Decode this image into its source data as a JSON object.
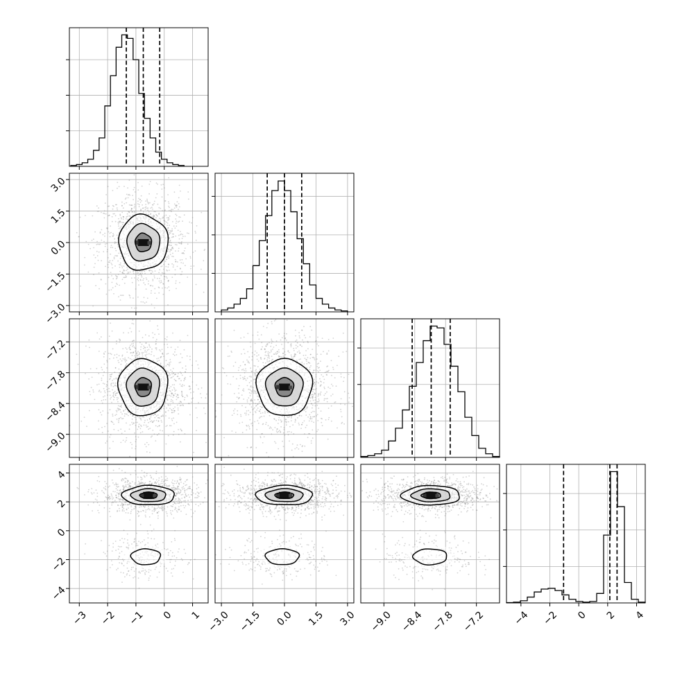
{
  "chart_data": {
    "type": "corner",
    "description_free": true,
    "parameters": [
      {
        "range": [
          -3.35,
          1.55
        ],
        "ticks": [
          {
            "value": -3,
            "label": "−3"
          },
          {
            "value": -2,
            "label": "−2"
          },
          {
            "value": -1,
            "label": "−1"
          },
          {
            "value": 0,
            "label": "0"
          },
          {
            "value": 1,
            "label": "1"
          }
        ],
        "quantiles": [
          -1.34,
          -0.74,
          -0.16
        ],
        "hist": {
          "start": -3.3,
          "width": 0.2,
          "counts": [
            0.5,
            1,
            2,
            4,
            9,
            16,
            34,
            51,
            67,
            74,
            72,
            60,
            41,
            27,
            16,
            8,
            4,
            2,
            1,
            0.5
          ],
          "ymax": 78,
          "grid": [
            20,
            40,
            60
          ]
        }
      },
      {
        "range": [
          -3.3,
          3.3
        ],
        "ticks": [
          {
            "value": -3.0,
            "label": "−3.0"
          },
          {
            "value": -1.5,
            "label": "−1.5"
          },
          {
            "value": 0.0,
            "label": "0.0"
          },
          {
            "value": 1.5,
            "label": "1.5"
          },
          {
            "value": 3.0,
            "label": "3.0"
          }
        ],
        "quantiles": [
          -0.82,
          0.0,
          0.82
        ],
        "hist": {
          "start": -3.0,
          "width": 0.3,
          "counts": [
            1,
            2,
            4,
            7,
            12,
            24,
            37,
            50,
            63,
            68,
            63,
            52,
            38,
            25,
            14,
            7,
            4,
            2,
            1,
            0.5
          ],
          "ymax": 72,
          "grid": [
            20,
            40,
            60
          ]
        }
      },
      {
        "range": [
          -9.45,
          -6.75
        ],
        "ticks": [
          {
            "value": -9.0,
            "label": "−9.0"
          },
          {
            "value": -8.4,
            "label": "−8.4"
          },
          {
            "value": -7.8,
            "label": "−7.8"
          },
          {
            "value": -7.2,
            "label": "−7.2"
          }
        ],
        "quantiles": [
          -8.45,
          -8.08,
          -7.71
        ],
        "hist": {
          "start": -9.45,
          "width": 0.135,
          "counts": [
            0.5,
            1,
            2,
            4,
            9,
            16,
            26,
            39,
            52,
            64,
            72,
            71,
            62,
            50,
            36,
            22,
            12,
            5,
            2,
            0.5
          ],
          "ymax": 76,
          "grid": [
            20,
            40,
            60
          ]
        }
      },
      {
        "range": [
          -5.0,
          4.6
        ],
        "ticks": [
          {
            "value": -4,
            "label": "−4"
          },
          {
            "value": -2,
            "label": "−2"
          },
          {
            "value": 0,
            "label": "0"
          },
          {
            "value": 2,
            "label": "2"
          },
          {
            "value": 4,
            "label": "4"
          }
        ],
        "quantiles": [
          -1.05,
          2.15,
          2.65
        ],
        "hist": {
          "start": -5.0,
          "width": 0.48,
          "counts": [
            0.5,
            1,
            3,
            8,
            15,
            19,
            20,
            17,
            11,
            5,
            2,
            1,
            2,
            13,
            93,
            180,
            132,
            28,
            5,
            1
          ],
          "ymax": 190,
          "grid": [
            50,
            100,
            150
          ]
        }
      }
    ],
    "blobs": [
      {
        "row": 1,
        "col": 0,
        "clusters": [
          {
            "mx": -0.74,
            "my": 0.0,
            "sx": 0.58,
            "sy": 0.88,
            "w": 1.0
          }
        ]
      },
      {
        "row": 2,
        "col": 0,
        "clusters": [
          {
            "mx": -0.74,
            "my": -8.08,
            "sx": 0.58,
            "sy": 0.37,
            "w": 1.0
          }
        ]
      },
      {
        "row": 2,
        "col": 1,
        "clusters": [
          {
            "mx": 0.0,
            "my": -8.08,
            "sx": 0.88,
            "sy": 0.37,
            "w": 1.0
          }
        ]
      },
      {
        "row": 3,
        "col": 0,
        "clusters": [
          {
            "mx": -0.55,
            "my": 2.45,
            "sx": 0.62,
            "sy": 0.45,
            "w": 0.8
          },
          {
            "mx": -0.65,
            "my": -1.8,
            "sx": 0.52,
            "sy": 0.55,
            "w": 0.2
          }
        ]
      },
      {
        "row": 3,
        "col": 1,
        "clusters": [
          {
            "mx": 0.0,
            "my": 2.45,
            "sx": 0.9,
            "sy": 0.45,
            "w": 0.8
          },
          {
            "mx": -0.1,
            "my": -1.8,
            "sx": 0.8,
            "sy": 0.55,
            "w": 0.2
          }
        ]
      },
      {
        "row": 3,
        "col": 2,
        "clusters": [
          {
            "mx": -8.08,
            "my": 2.45,
            "sx": 0.38,
            "sy": 0.45,
            "w": 0.8
          },
          {
            "mx": -8.1,
            "my": -1.8,
            "sx": 0.33,
            "sy": 0.55,
            "w": 0.2
          }
        ]
      }
    ],
    "contour_levels_sigma": [
      0.5,
      1.0,
      1.5
    ],
    "colors": {
      "line": "#000000",
      "grid": "#b0b0b0",
      "points": "#7f7f7f",
      "frame": "#000000"
    }
  }
}
